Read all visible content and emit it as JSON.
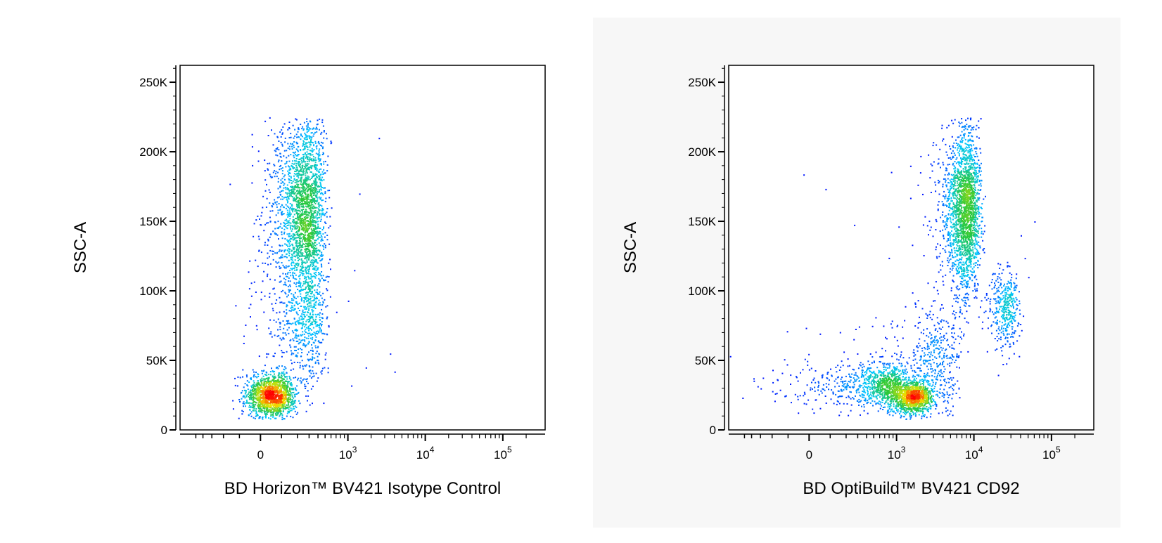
{
  "chart_data": [
    {
      "type": "scatter",
      "title": "",
      "xlabel": "BD Horizon™ BV421 Isotype Control",
      "ylabel": "SSC-A",
      "x_scale": "biexponential",
      "y_scale": "linear",
      "ylim": [
        0,
        262144
      ],
      "y_ticks": [
        {
          "value": 0,
          "label": "0"
        },
        {
          "value": 50000,
          "label": "50K"
        },
        {
          "value": 100000,
          "label": "100K"
        },
        {
          "value": 150000,
          "label": "150K"
        },
        {
          "value": 200000,
          "label": "200K"
        },
        {
          "value": 250000,
          "label": "250K"
        }
      ],
      "x_ticks": [
        {
          "value": 0,
          "label": "0",
          "exp": ""
        },
        {
          "value": 1000,
          "label": "10",
          "exp": "3"
        },
        {
          "value": 10000,
          "label": "10",
          "exp": "4"
        },
        {
          "value": 100000,
          "label": "10",
          "exp": "5"
        }
      ],
      "grid": false,
      "legend": "none",
      "coloring": "density (blue-cyan-green-yellow-red)",
      "populations": [
        {
          "x_center": 50,
          "x_spread": 60,
          "y_center": 25000,
          "y_spread": 8000,
          "count": 1500
        },
        {
          "x_center": 250,
          "x_spread": 110,
          "y_center": 160000,
          "y_spread": 33000,
          "count": 2300
        },
        {
          "x_center": 250,
          "x_spread": 120,
          "y_center": 80000,
          "y_spread": 28000,
          "count": 700
        }
      ],
      "sparse_events": [
        {
          "x": 1400,
          "y": 170000
        },
        {
          "x": 1200,
          "y": 115000
        },
        {
          "x": 1000,
          "y": 93000
        },
        {
          "x": 3500,
          "y": 55000
        },
        {
          "x": 4000,
          "y": 42000
        },
        {
          "x": 2500,
          "y": 210000
        },
        {
          "x": 1700,
          "y": 45000
        },
        {
          "x": 1100,
          "y": 32000
        },
        {
          "x": 700,
          "y": 85000
        },
        {
          "x": 600,
          "y": 160000
        }
      ]
    },
    {
      "type": "scatter",
      "title": "",
      "xlabel": "BD OptiBuild™ BV421 CD92",
      "ylabel": "SSC-A",
      "x_scale": "biexponential",
      "y_scale": "linear",
      "ylim": [
        0,
        262144
      ],
      "y_ticks": [
        {
          "value": 0,
          "label": "0"
        },
        {
          "value": 50000,
          "label": "50K"
        },
        {
          "value": 100000,
          "label": "100K"
        },
        {
          "value": 150000,
          "label": "150K"
        },
        {
          "value": 200000,
          "label": "200K"
        },
        {
          "value": 250000,
          "label": "250K"
        }
      ],
      "x_ticks": [
        {
          "value": 0,
          "label": "0",
          "exp": ""
        },
        {
          "value": 1000,
          "label": "10",
          "exp": "3"
        },
        {
          "value": 10000,
          "label": "10",
          "exp": "4"
        },
        {
          "value": 100000,
          "label": "10",
          "exp": "5"
        }
      ],
      "grid": false,
      "legend": "none",
      "coloring": "density (blue-cyan-green-yellow-red)",
      "populations": [
        {
          "x_center": 1500,
          "x_spread": 600,
          "y_center": 24000,
          "y_spread": 6000,
          "count": 1300
        },
        {
          "x_center": 650,
          "x_spread": 300,
          "y_center": 35000,
          "y_spread": 7000,
          "count": 600
        },
        {
          "x_center": 7500,
          "x_spread": 2000,
          "y_center": 160000,
          "y_spread": 30000,
          "count": 2200
        },
        {
          "x_center": 25000,
          "x_spread": 6000,
          "y_center": 88000,
          "y_spread": 14000,
          "count": 400
        },
        {
          "x_center": 3000,
          "x_spread": 1500,
          "y_center": 50000,
          "y_spread": 22000,
          "count": 500
        },
        {
          "x_center": 100,
          "x_spread": 150,
          "y_center": 32000,
          "y_spread": 9000,
          "count": 120
        }
      ],
      "sparse_events": [
        {
          "x": 6000,
          "y": 205000
        },
        {
          "x": 60000,
          "y": 150000
        },
        {
          "x": 40000,
          "y": 140000
        },
        {
          "x": 50000,
          "y": 110000
        },
        {
          "x": 1500,
          "y": 190000
        },
        {
          "x": -200,
          "y": 28000
        },
        {
          "x": -300,
          "y": 30000
        }
      ]
    }
  ]
}
